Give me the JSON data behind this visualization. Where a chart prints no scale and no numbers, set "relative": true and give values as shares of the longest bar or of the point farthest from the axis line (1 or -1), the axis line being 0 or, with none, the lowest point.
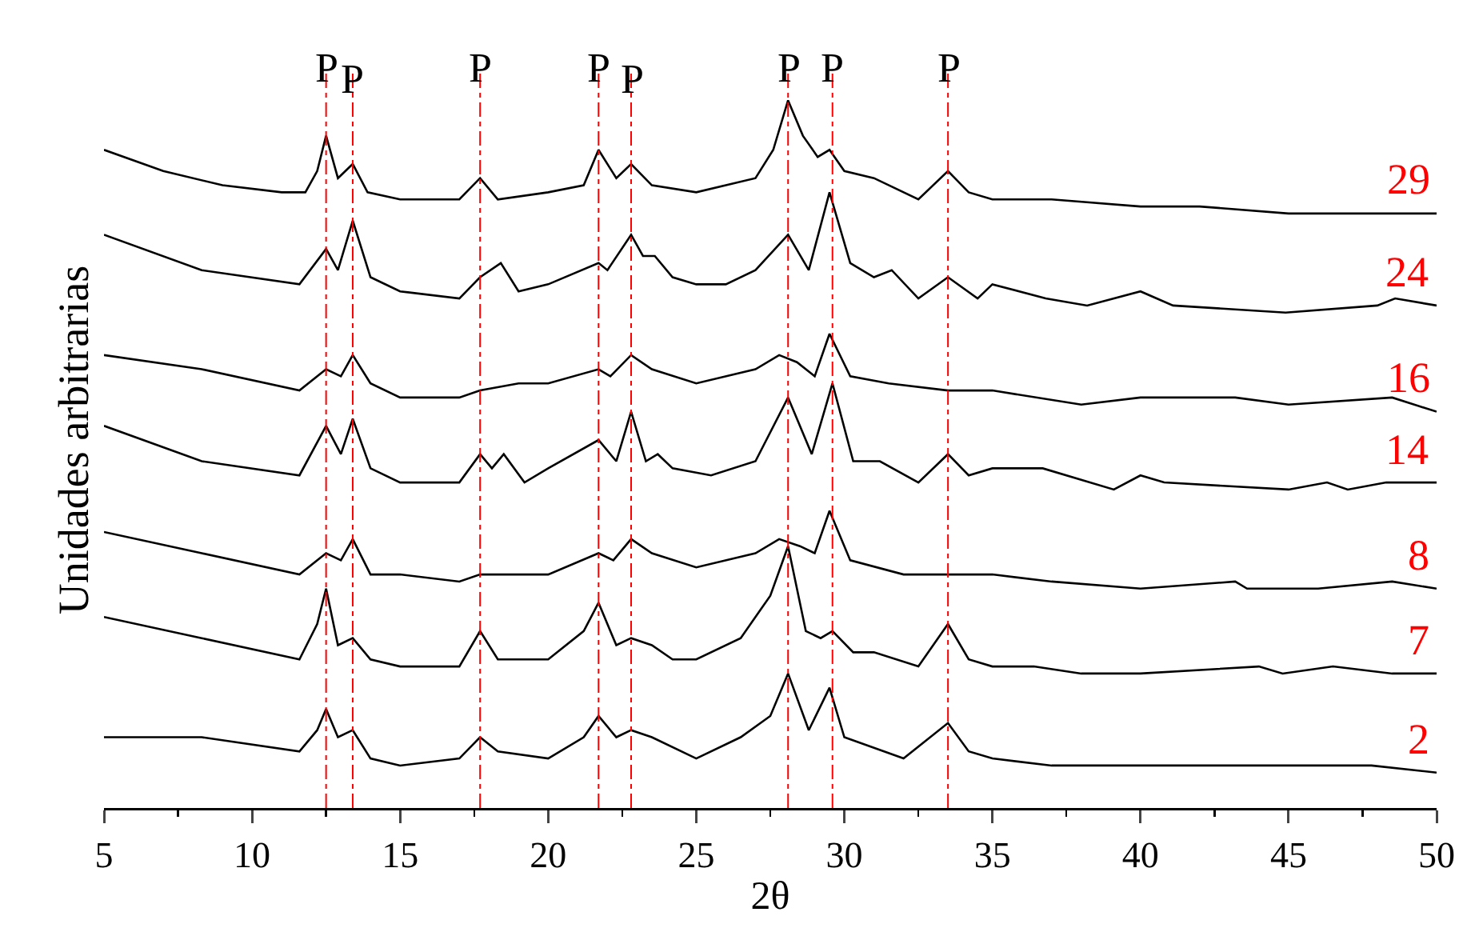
{
  "chart_data": {
    "type": "line",
    "relative": true,
    "xlabel": "2θ",
    "ylabel": "Unidades arbitrarias",
    "xlim": [
      5,
      50
    ],
    "xticks": [
      5,
      10,
      15,
      20,
      25,
      30,
      35,
      40,
      45,
      50
    ],
    "grid": false,
    "legend": false,
    "marker": "none",
    "line_style": "solid",
    "series": [
      {
        "name": "29",
        "color": "#000000",
        "x": [
          5,
          7,
          9,
          11,
          11.8,
          12.2,
          12.5,
          12.9,
          13.4,
          13.9,
          15,
          17,
          17.7,
          18.3,
          20,
          21.2,
          21.7,
          22.3,
          22.8,
          23.5,
          25,
          27,
          27.6,
          28.1,
          28.6,
          29.1,
          29.5,
          30,
          31,
          32.5,
          33.5,
          34.2,
          35,
          37,
          40,
          42,
          45,
          48,
          50
        ],
        "values": [
          0.93,
          0.9,
          0.88,
          0.87,
          0.87,
          0.9,
          0.95,
          0.89,
          0.91,
          0.87,
          0.86,
          0.86,
          0.89,
          0.86,
          0.87,
          0.88,
          0.93,
          0.89,
          0.91,
          0.88,
          0.87,
          0.89,
          0.93,
          1.0,
          0.95,
          0.92,
          0.93,
          0.9,
          0.89,
          0.86,
          0.9,
          0.87,
          0.86,
          0.86,
          0.85,
          0.85,
          0.84,
          0.84,
          0.84
        ]
      },
      {
        "name": "24",
        "color": "#000000",
        "x": [
          5,
          8.3,
          11.6,
          12.5,
          12.9,
          13.4,
          14,
          15,
          17,
          17.7,
          18.4,
          19,
          20,
          21.7,
          22,
          22.8,
          23.2,
          23.6,
          24.2,
          25,
          26,
          27,
          28.1,
          28.8,
          29.5,
          30.2,
          31,
          31.6,
          32.5,
          33.5,
          34.5,
          35,
          36.8,
          38.2,
          40,
          41.1,
          44.9,
          48,
          48.6,
          50
        ],
        "values": [
          0.81,
          0.76,
          0.74,
          0.79,
          0.76,
          0.83,
          0.75,
          0.73,
          0.72,
          0.75,
          0.77,
          0.73,
          0.74,
          0.77,
          0.76,
          0.81,
          0.78,
          0.78,
          0.75,
          0.74,
          0.74,
          0.76,
          0.81,
          0.76,
          0.87,
          0.77,
          0.75,
          0.76,
          0.72,
          0.75,
          0.72,
          0.74,
          0.72,
          0.71,
          0.73,
          0.71,
          0.7,
          0.71,
          0.72,
          0.71
        ]
      },
      {
        "name": "16",
        "color": "#000000",
        "x": [
          5,
          8.3,
          11.6,
          12.5,
          13,
          13.4,
          14,
          15,
          17,
          17.7,
          19,
          20,
          21.7,
          22.1,
          22.8,
          23.5,
          25,
          27,
          27.8,
          28.4,
          29,
          29.5,
          30.2,
          31.5,
          33.5,
          35,
          38,
          40,
          43.2,
          45,
          48.5,
          50
        ],
        "values": [
          0.64,
          0.62,
          0.59,
          0.62,
          0.61,
          0.64,
          0.6,
          0.58,
          0.58,
          0.59,
          0.6,
          0.6,
          0.62,
          0.61,
          0.64,
          0.62,
          0.6,
          0.62,
          0.64,
          0.63,
          0.61,
          0.67,
          0.61,
          0.6,
          0.59,
          0.59,
          0.57,
          0.58,
          0.58,
          0.57,
          0.58,
          0.56
        ]
      },
      {
        "name": "14",
        "color": "#000000",
        "x": [
          5,
          8.3,
          11.6,
          12.5,
          13,
          13.4,
          14,
          15,
          17,
          17.7,
          18.1,
          18.5,
          19.2,
          20,
          21.7,
          22.3,
          22.8,
          23.3,
          23.7,
          24.2,
          25.5,
          27,
          28.1,
          28.9,
          29.6,
          30.3,
          31.2,
          32.5,
          33.5,
          34.2,
          35,
          36.7,
          39.1,
          40,
          40.8,
          45,
          46.3,
          47,
          48.3,
          50
        ],
        "values": [
          0.54,
          0.49,
          0.47,
          0.54,
          0.5,
          0.55,
          0.48,
          0.46,
          0.46,
          0.5,
          0.48,
          0.5,
          0.46,
          0.48,
          0.52,
          0.49,
          0.56,
          0.49,
          0.5,
          0.48,
          0.47,
          0.49,
          0.58,
          0.5,
          0.6,
          0.49,
          0.49,
          0.46,
          0.5,
          0.47,
          0.48,
          0.48,
          0.45,
          0.47,
          0.46,
          0.45,
          0.46,
          0.45,
          0.46,
          0.46
        ]
      },
      {
        "name": "8",
        "color": "#000000",
        "x": [
          5,
          8.3,
          11.6,
          12.5,
          13,
          13.4,
          14,
          15,
          17,
          17.7,
          19,
          20,
          21.7,
          22.2,
          22.8,
          23.5,
          25,
          27,
          27.8,
          28.5,
          29,
          29.5,
          30.2,
          32,
          33.5,
          35,
          37,
          40,
          43.2,
          43.6,
          46,
          48.5,
          50
        ],
        "values": [
          0.39,
          0.36,
          0.33,
          0.36,
          0.35,
          0.38,
          0.33,
          0.33,
          0.32,
          0.33,
          0.33,
          0.33,
          0.36,
          0.35,
          0.38,
          0.36,
          0.34,
          0.36,
          0.38,
          0.37,
          0.36,
          0.42,
          0.35,
          0.33,
          0.33,
          0.33,
          0.32,
          0.31,
          0.32,
          0.31,
          0.31,
          0.32,
          0.31
        ]
      },
      {
        "name": "7",
        "color": "#000000",
        "x": [
          5,
          8.3,
          11.6,
          12.2,
          12.5,
          12.9,
          13.4,
          14,
          15,
          17,
          17.7,
          18.3,
          20,
          21.2,
          21.7,
          22.3,
          22.8,
          23.5,
          24.2,
          25,
          26.5,
          27.5,
          28.1,
          28.7,
          29.2,
          29.6,
          30.3,
          31,
          32.5,
          33.5,
          34.2,
          35,
          36.4,
          38,
          40,
          44,
          44.8,
          46.5,
          48.5,
          50
        ],
        "values": [
          0.27,
          0.24,
          0.21,
          0.26,
          0.31,
          0.23,
          0.24,
          0.21,
          0.2,
          0.2,
          0.25,
          0.21,
          0.21,
          0.25,
          0.29,
          0.23,
          0.24,
          0.23,
          0.21,
          0.21,
          0.24,
          0.3,
          0.37,
          0.25,
          0.24,
          0.25,
          0.22,
          0.22,
          0.2,
          0.26,
          0.21,
          0.2,
          0.2,
          0.19,
          0.19,
          0.2,
          0.19,
          0.2,
          0.19,
          0.19
        ]
      },
      {
        "name": "2",
        "color": "#000000",
        "x": [
          5,
          8.3,
          11.6,
          12.2,
          12.5,
          12.9,
          13.4,
          14,
          15,
          17,
          17.7,
          18.3,
          20,
          21.2,
          21.7,
          22.3,
          22.8,
          23.5,
          25,
          26.5,
          27.5,
          28.1,
          28.8,
          29.5,
          30,
          32,
          33.5,
          34.2,
          35,
          37,
          39.7,
          42,
          45,
          47.8,
          50
        ],
        "values": [
          0.1,
          0.1,
          0.08,
          0.11,
          0.14,
          0.1,
          0.11,
          0.07,
          0.06,
          0.07,
          0.1,
          0.08,
          0.07,
          0.1,
          0.13,
          0.1,
          0.11,
          0.1,
          0.07,
          0.1,
          0.13,
          0.19,
          0.11,
          0.17,
          0.1,
          0.07,
          0.12,
          0.08,
          0.07,
          0.06,
          0.06,
          0.06,
          0.06,
          0.06,
          0.05
        ]
      }
    ],
    "ref_lines": [
      {
        "axis": "x",
        "value": 12.5,
        "label": "P",
        "color": "#ff0000",
        "line_style": "dashdot"
      },
      {
        "axis": "x",
        "value": 13.4,
        "label": "P",
        "color": "#ff0000",
        "line_style": "dashdot"
      },
      {
        "axis": "x",
        "value": 17.7,
        "label": "P",
        "color": "#ff0000",
        "line_style": "dashdot"
      },
      {
        "axis": "x",
        "value": 21.7,
        "label": "P",
        "color": "#ff0000",
        "line_style": "dashdot"
      },
      {
        "axis": "x",
        "value": 22.8,
        "label": "P",
        "color": "#ff0000",
        "line_style": "dashdot"
      },
      {
        "axis": "x",
        "value": 28.1,
        "label": "P",
        "color": "#ff0000",
        "line_style": "dashdot"
      },
      {
        "axis": "x",
        "value": 29.6,
        "label": "P",
        "color": "#ff0000",
        "line_style": "dashdot"
      },
      {
        "axis": "x",
        "value": 33.5,
        "label": "P",
        "color": "#ff0000",
        "line_style": "dashdot"
      }
    ]
  }
}
